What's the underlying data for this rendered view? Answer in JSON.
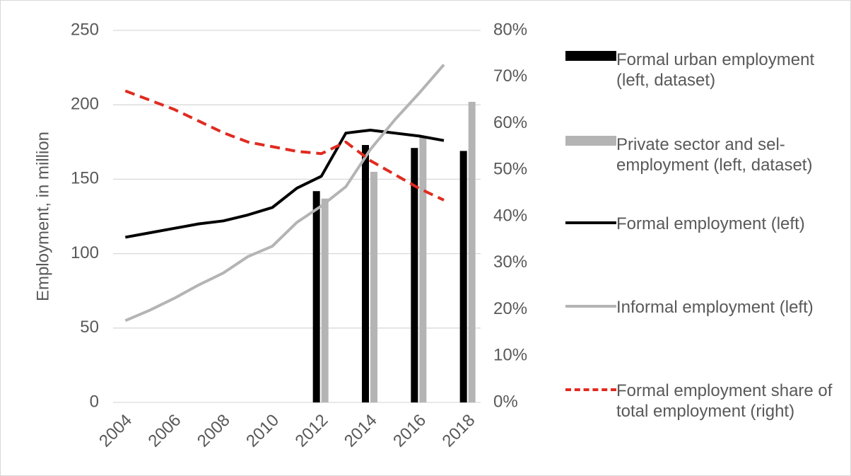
{
  "chart_data": {
    "type": "bar_line",
    "y_label": "Employment, in million",
    "categories": [
      "2004",
      null,
      "2006",
      null,
      "2008",
      null,
      "2010",
      null,
      "2012",
      null,
      "2014",
      null,
      "2016",
      null,
      "2018"
    ],
    "series": [
      {
        "name": "Formal urban employment (left, dataset)",
        "type": "bar",
        "color": "#000000",
        "values": [
          null,
          null,
          null,
          null,
          null,
          null,
          null,
          null,
          142,
          null,
          173,
          null,
          171,
          null,
          169
        ]
      },
      {
        "name": "Private sector and sel-employment (left, dataset)",
        "type": "bar",
        "color": "#b4b4b4",
        "values": [
          null,
          null,
          null,
          null,
          null,
          null,
          null,
          null,
          137,
          null,
          155,
          null,
          178,
          null,
          202
        ]
      },
      {
        "name": "Formal employment (left)",
        "type": "line",
        "color": "#000000",
        "values": [
          111,
          114,
          117,
          120,
          122,
          126,
          131,
          144,
          152,
          181,
          183,
          181,
          179,
          176,
          null
        ]
      },
      {
        "name": "Informal employment (left)",
        "type": "line",
        "color": "#b4b4b4",
        "values": [
          55,
          62,
          70,
          79,
          87,
          98,
          105,
          121,
          132,
          145,
          170,
          190,
          208,
          227,
          null
        ]
      },
      {
        "name": "Formal employment share of total employment (right)",
        "type": "line",
        "color": "#e02b20",
        "dashed": true,
        "axis": "y2",
        "values": [
          67,
          65,
          63,
          60.5,
          58,
          56,
          55,
          54,
          53.5,
          56,
          52,
          49,
          46,
          43.5,
          null
        ]
      }
    ],
    "ylim": [
      0,
      250
    ],
    "yticks": [
      0,
      50,
      100,
      150,
      200,
      250
    ],
    "y2lim": [
      0,
      80
    ],
    "y2ticks": [
      {
        "value": 0,
        "label": "0%"
      },
      {
        "value": 10,
        "label": "10%"
      },
      {
        "value": 20,
        "label": "20%"
      },
      {
        "value": 30,
        "label": "30%"
      },
      {
        "value": 40,
        "label": "40%"
      },
      {
        "value": 50,
        "label": "50%"
      },
      {
        "value": 60,
        "label": "60%"
      },
      {
        "value": 70,
        "label": "70%"
      },
      {
        "value": 80,
        "label": "80%"
      }
    ],
    "grid": true
  }
}
